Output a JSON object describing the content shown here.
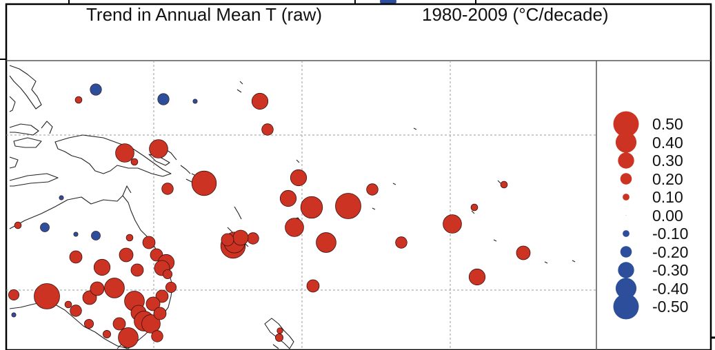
{
  "title": "Trend in Annual Mean T (raw)",
  "period_units": "1980-2009 (°C/decade)",
  "legend": [
    {
      "label": "0.50",
      "value": 0.5
    },
    {
      "label": "0.40",
      "value": 0.4
    },
    {
      "label": "0.30",
      "value": 0.3
    },
    {
      "label": "0.20",
      "value": 0.2
    },
    {
      "label": "0.10",
      "value": 0.1
    },
    {
      "label": "0.00",
      "value": 0.0
    },
    {
      "label": "-0.10",
      "value": -0.1
    },
    {
      "label": "-0.20",
      "value": -0.2
    },
    {
      "label": "-0.30",
      "value": -0.3
    },
    {
      "label": "-0.40",
      "value": -0.4
    },
    {
      "label": "-0.50",
      "value": -0.5
    }
  ],
  "colors": {
    "warming": "#cc3322",
    "cooling": "#2d4e9a",
    "frame": "#000000",
    "grid": "#9a9a9a",
    "coast": "#222222"
  }
}
